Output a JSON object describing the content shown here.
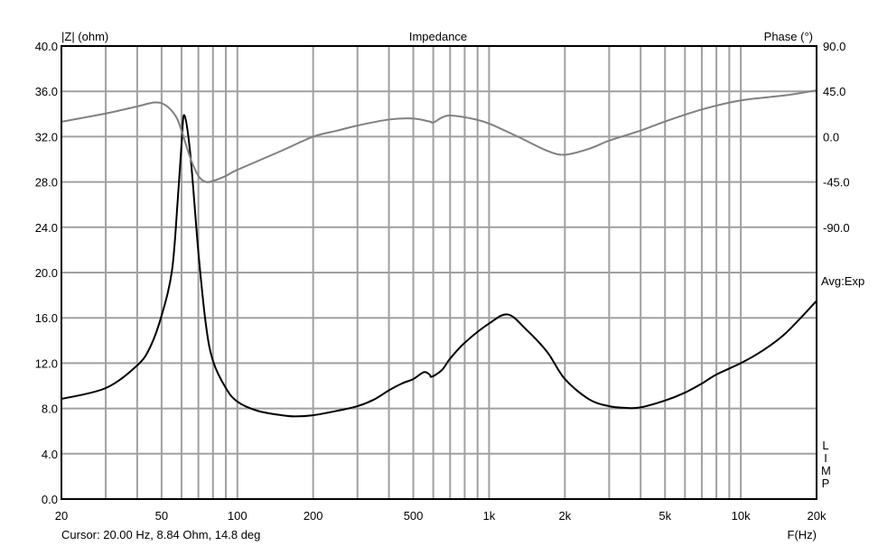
{
  "chart_data": {
    "type": "line",
    "title": "Impedance",
    "ylabel": "|Z| (ohm)",
    "y2label": "Phase (°)",
    "xlabel": "F(Hz)",
    "xscale": "log",
    "xlim": [
      20,
      20000
    ],
    "ylim": [
      0,
      40
    ],
    "y2lim": [
      -360,
      90
    ],
    "grid": true,
    "x_ticks": [
      {
        "v": 20,
        "label": "20"
      },
      {
        "v": 50,
        "label": "50"
      },
      {
        "v": 100,
        "label": "100"
      },
      {
        "v": 200,
        "label": "200"
      },
      {
        "v": 500,
        "label": "500"
      },
      {
        "v": 1000,
        "label": "1k"
      },
      {
        "v": 2000,
        "label": "2k"
      },
      {
        "v": 5000,
        "label": "5k"
      },
      {
        "v": 10000,
        "label": "10k"
      },
      {
        "v": 20000,
        "label": "20k"
      }
    ],
    "y_ticks": [
      {
        "v": 0,
        "label": "0.0"
      },
      {
        "v": 4,
        "label": "4.0"
      },
      {
        "v": 8,
        "label": "8.0"
      },
      {
        "v": 12,
        "label": "12.0"
      },
      {
        "v": 16,
        "label": "16.0"
      },
      {
        "v": 20,
        "label": "20.0"
      },
      {
        "v": 24,
        "label": "24.0"
      },
      {
        "v": 28,
        "label": "28.0"
      },
      {
        "v": 32,
        "label": "32.0"
      },
      {
        "v": 36,
        "label": "36.0"
      },
      {
        "v": 40,
        "label": "40.0"
      }
    ],
    "y2_ticks": [
      {
        "v": 90,
        "label": "90.0"
      },
      {
        "v": 45,
        "label": "45.0"
      },
      {
        "v": 0,
        "label": "0.0"
      },
      {
        "v": -45,
        "label": "-45.0"
      },
      {
        "v": -90,
        "label": "-90.0"
      }
    ],
    "series": [
      {
        "name": "Impedance",
        "axis": "left",
        "color": "#000000",
        "x": [
          20,
          30,
          40,
          45,
          50,
          55,
          58,
          60,
          61.5,
          65,
          70,
          75,
          80,
          90,
          100,
          120,
          150,
          170,
          200,
          250,
          300,
          350,
          400,
          450,
          500,
          550,
          580,
          592,
          650,
          700,
          800,
          1000,
          1186,
          1400,
          1700,
          2000,
          2500,
          3000,
          3500,
          4000,
          5000,
          6000,
          7000,
          8000,
          10000,
          12000,
          15000,
          20000
        ],
        "y": [
          8.84,
          9.8,
          11.8,
          13.4,
          16.2,
          20.2,
          26.5,
          31.3,
          33.9,
          30.5,
          21.8,
          15.4,
          12.2,
          9.8,
          8.6,
          7.8,
          7.4,
          7.3,
          7.4,
          7.8,
          8.2,
          8.8,
          9.6,
          10.2,
          10.6,
          11.2,
          11.0,
          10.8,
          11.4,
          12.4,
          13.8,
          15.5,
          16.3,
          15.0,
          13.0,
          10.6,
          8.8,
          8.2,
          8.05,
          8.1,
          8.7,
          9.4,
          10.2,
          11.0,
          12.0,
          13.0,
          14.6,
          17.5
        ]
      },
      {
        "name": "Phase",
        "axis": "right",
        "color": "#808080",
        "x": [
          20,
          30,
          40,
          47,
          52,
          57,
          60,
          65,
          70,
          75,
          80,
          90,
          100,
          150,
          200,
          250,
          300,
          400,
          500,
          580,
          600,
          650,
          700,
          850,
          1000,
          1300,
          1700,
          2000,
          2500,
          3000,
          4000,
          5000,
          7000,
          10000,
          15000,
          20000
        ],
        "y": [
          14.8,
          23,
          30,
          34,
          31,
          20,
          6,
          -21,
          -39,
          -45,
          -44,
          -39,
          -33,
          -14,
          0,
          6,
          11,
          17,
          18,
          15,
          14,
          19,
          21,
          18,
          13,
          0,
          -14,
          -18,
          -12,
          -4,
          6,
          15,
          27,
          36,
          41,
          46
        ]
      }
    ]
  },
  "side_labels": {
    "avg": "Avg:Exp",
    "brand": "LIMP"
  },
  "cursor_readout": "Cursor: 20.00 Hz, 8.84 Ohm, 14.8 deg"
}
